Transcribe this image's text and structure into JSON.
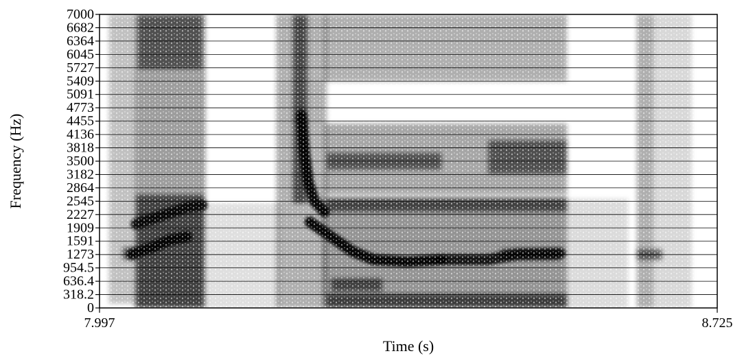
{
  "chart_data": {
    "type": "heatmap",
    "title": "",
    "xlabel": "Time (s)",
    "ylabel": "Frequency (Hz)",
    "xlim": [
      7.997,
      8.725
    ],
    "ylim": [
      0,
      7000
    ],
    "x_tick_labels": [
      "7.997",
      "8.725"
    ],
    "y_tick_labels": [
      "0",
      "318.2",
      "636.4",
      "954.5",
      "1273",
      "1591",
      "1909",
      "2227",
      "2545",
      "2864",
      "3182",
      "3500",
      "3818",
      "4136",
      "4455",
      "4773",
      "5091",
      "5409",
      "5727",
      "6045",
      "6364",
      "6682",
      "7000"
    ],
    "y_tick_values": [
      0,
      318.2,
      636.4,
      954.5,
      1273,
      1591,
      1909,
      2227,
      2545,
      2864,
      3182,
      3500,
      3818,
      4136,
      4455,
      4773,
      5091,
      5409,
      5727,
      6045,
      6364,
      6682,
      7000
    ],
    "grid": "horizontal",
    "colormap": "grayscale (dark = high energy)",
    "colors": {
      "axis": "#000000",
      "grid": "#000000",
      "background": "#ffffff"
    },
    "energy_regions": [
      {
        "t0": 8.008,
        "t1": 8.038,
        "f0": 100,
        "f1": 7000,
        "intensity": 0.35
      },
      {
        "t0": 8.038,
        "t1": 8.122,
        "f0": 0,
        "f1": 7000,
        "intensity": 0.55
      },
      {
        "t0": 8.04,
        "t1": 8.12,
        "f0": 0,
        "f1": 2700,
        "intensity": 0.85
      },
      {
        "t0": 8.042,
        "t1": 8.118,
        "f0": 5700,
        "f1": 7000,
        "intensity": 0.7
      },
      {
        "t0": 8.024,
        "t1": 8.04,
        "f0": 1150,
        "f1": 1450,
        "intensity": 0.7
      },
      {
        "t0": 8.122,
        "t1": 8.21,
        "f0": 0,
        "f1": 2500,
        "intensity": 0.18
      },
      {
        "t0": 8.205,
        "t1": 8.265,
        "f0": 0,
        "f1": 7000,
        "intensity": 0.45
      },
      {
        "t0": 8.225,
        "t1": 8.242,
        "f0": 2500,
        "f1": 7000,
        "intensity": 0.85
      },
      {
        "t0": 8.26,
        "t1": 8.548,
        "f0": 0,
        "f1": 2650,
        "intensity": 0.6
      },
      {
        "t0": 8.262,
        "t1": 8.548,
        "f0": 5400,
        "f1": 7000,
        "intensity": 0.45
      },
      {
        "t0": 8.262,
        "t1": 8.548,
        "f0": 2700,
        "f1": 4400,
        "intensity": 0.5
      },
      {
        "t0": 8.265,
        "t1": 8.4,
        "f0": 3300,
        "f1": 3700,
        "intensity": 0.75
      },
      {
        "t0": 8.265,
        "t1": 8.548,
        "f0": 2300,
        "f1": 2600,
        "intensity": 0.8
      },
      {
        "t0": 8.265,
        "t1": 8.548,
        "f0": 0,
        "f1": 330,
        "intensity": 0.85
      },
      {
        "t0": 8.27,
        "t1": 8.33,
        "f0": 400,
        "f1": 700,
        "intensity": 0.8
      },
      {
        "t0": 8.455,
        "t1": 8.548,
        "f0": 3200,
        "f1": 4000,
        "intensity": 0.75
      },
      {
        "t0": 8.47,
        "t1": 8.54,
        "f0": 1150,
        "f1": 1400,
        "intensity": 0.9
      },
      {
        "t0": 8.548,
        "t1": 8.62,
        "f0": 0,
        "f1": 2600,
        "intensity": 0.2
      },
      {
        "t0": 8.63,
        "t1": 8.65,
        "f0": 0,
        "f1": 7000,
        "intensity": 0.45
      },
      {
        "t0": 8.65,
        "t1": 8.695,
        "f0": 0,
        "f1": 7000,
        "intensity": 0.22
      },
      {
        "t0": 8.63,
        "t1": 8.66,
        "f0": 1150,
        "f1": 1400,
        "intensity": 0.75
      }
    ],
    "formant_tracks": [
      {
        "points": [
          [
            8.035,
            1280
          ],
          [
            8.06,
            1450
          ],
          [
            8.08,
            1620
          ],
          [
            8.1,
            1700
          ]
        ],
        "intensity": 0.9
      },
      {
        "points": [
          [
            8.04,
            2000
          ],
          [
            8.07,
            2200
          ],
          [
            8.1,
            2400
          ],
          [
            8.118,
            2450
          ]
        ],
        "intensity": 0.85
      },
      {
        "points": [
          [
            8.235,
            4600
          ],
          [
            8.238,
            3800
          ],
          [
            8.243,
            3000
          ],
          [
            8.25,
            2550
          ],
          [
            8.262,
            2300
          ]
        ],
        "intensity": 0.95
      },
      {
        "points": [
          [
            8.245,
            2050
          ],
          [
            8.27,
            1700
          ],
          [
            8.295,
            1350
          ],
          [
            8.32,
            1150
          ],
          [
            8.36,
            1100
          ],
          [
            8.4,
            1150
          ]
        ],
        "intensity": 0.95
      },
      {
        "points": [
          [
            8.4,
            1150
          ],
          [
            8.455,
            1150
          ],
          [
            8.49,
            1280
          ],
          [
            8.54,
            1300
          ]
        ],
        "intensity": 0.85
      }
    ]
  }
}
